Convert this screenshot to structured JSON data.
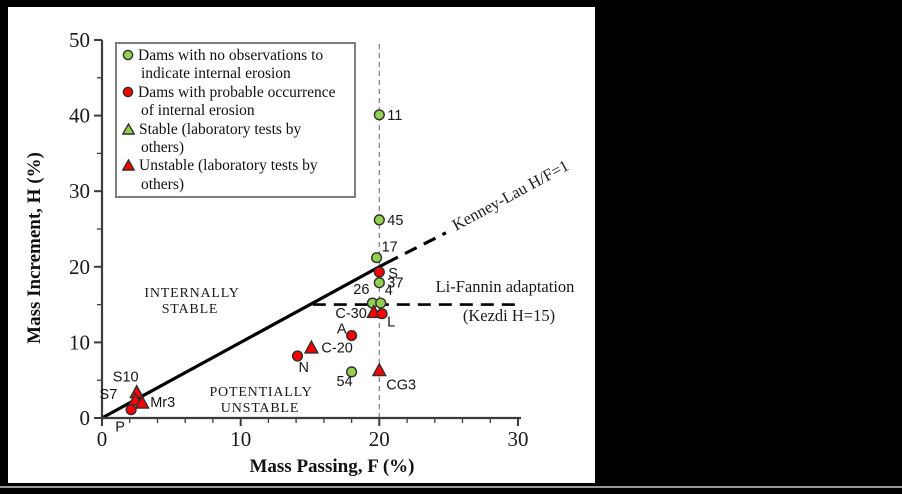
{
  "window": {
    "background_color": "#000000",
    "panel_color": "#ffffff",
    "divider_color": "#999999"
  },
  "legend": {
    "items": [
      {
        "marker": "circle",
        "color": "#92d050",
        "edge_color": "#2f2f2f",
        "lines": [
          "Dams with no observations to",
          "indicate internal erosion"
        ]
      },
      {
        "marker": "circle",
        "color": "#ff0000",
        "edge_color": "#2f2f2f",
        "lines": [
          "Dams with probable occurrence",
          "of internal erosion"
        ]
      },
      {
        "marker": "triangle",
        "color": "#92d050",
        "edge_color": "#2f2f2f",
        "lines": [
          "Stable (laboratory tests by",
          "others)"
        ]
      },
      {
        "marker": "triangle",
        "color": "#ff0000",
        "edge_color": "#2f2f2f",
        "lines": [
          "Unstable (laboratory tests by",
          "others)"
        ]
      }
    ]
  },
  "chart_data": {
    "type": "scatter",
    "xlabel": "Mass Passing, F (%)",
    "ylabel": "Mass Increment, H (%)",
    "xlim": [
      0,
      30
    ],
    "ylim": [
      0,
      50
    ],
    "x_major_ticks": [
      0,
      10,
      20,
      30
    ],
    "x_minor_step": 2,
    "y_major_ticks": [
      0,
      10,
      20,
      30,
      40,
      50
    ],
    "y_minor_step": 5,
    "grid": false,
    "legend_position": "upper-left",
    "series": [
      {
        "name": "Dams with no observations to indicate internal erosion",
        "marker": "circle",
        "color": "#92d050",
        "edge_color": "#2f2f2f",
        "points": [
          {
            "label": "11",
            "x": 20,
            "y": 40.1,
            "label_offset": [
              8,
              5
            ],
            "label_anchor": "start"
          },
          {
            "label": "45",
            "x": 20,
            "y": 26.2,
            "label_offset": [
              8,
              5
            ],
            "label_anchor": "start"
          },
          {
            "label": "17",
            "x": 19.8,
            "y": 21.2,
            "label_offset": [
              5,
              -6
            ],
            "label_anchor": "start"
          },
          {
            "label": "37",
            "x": 20,
            "y": 17.9,
            "label_offset": [
              8,
              5
            ],
            "label_anchor": "start"
          },
          {
            "label": "26",
            "x": 19.5,
            "y": 15.2,
            "label_offset": [
              -3,
              -9
            ],
            "label_anchor": "end"
          },
          {
            "label": "4",
            "x": 20.1,
            "y": 15.2,
            "label_offset": [
              4,
              -8
            ],
            "label_anchor": "start"
          },
          {
            "label": "54",
            "x": 18,
            "y": 6.1,
            "label_offset": [
              -7,
              14
            ],
            "label_anchor": "middle"
          }
        ]
      },
      {
        "name": "Dams with probable occurrence of internal erosion",
        "marker": "circle",
        "color": "#ff0000",
        "edge_color": "#2f2f2f",
        "points": [
          {
            "label": "S",
            "x": 20,
            "y": 19.3,
            "label_offset": [
              9,
              6
            ],
            "label_anchor": "start"
          },
          {
            "label": "L",
            "x": 20.2,
            "y": 13.8,
            "label_offset": [
              5,
              13
            ],
            "label_anchor": "start"
          },
          {
            "label": "A",
            "x": 18,
            "y": 10.9,
            "label_offset": [
              -5,
              -2
            ],
            "label_anchor": "end"
          },
          {
            "label": "N",
            "x": 14.1,
            "y": 8.2,
            "label_offset": [
              1,
              16
            ],
            "label_anchor": "start"
          },
          {
            "label": "P",
            "x": 2.1,
            "y": 1.1,
            "label_offset": [
              -11,
              22
            ],
            "label_anchor": "middle"
          }
        ]
      },
      {
        "name": "Stable (laboratory tests by others)",
        "marker": "triangle",
        "color": "#92d050",
        "edge_color": "#2f2f2f",
        "points": []
      },
      {
        "name": "Unstable (laboratory tests by others)",
        "marker": "triangle",
        "color": "#ff0000",
        "edge_color": "#2f2f2f",
        "points": [
          {
            "label": "C-30",
            "x": 19.6,
            "y": 14,
            "label_offset": [
              -7,
              6
            ],
            "label_anchor": "end"
          },
          {
            "label": "C-20",
            "x": 15.1,
            "y": 9.3,
            "label_offset": [
              10,
              5
            ],
            "label_anchor": "start"
          },
          {
            "label": "CG3",
            "x": 20,
            "y": 6.3,
            "label_offset": [
              7,
              19
            ],
            "label_anchor": "start"
          },
          {
            "label": "S10",
            "x": 2.5,
            "y": 3.4,
            "label_offset": [
              -11,
              -11
            ],
            "label_anchor": "middle"
          },
          {
            "label": "S7",
            "x": 2.4,
            "y": 2.4,
            "label_offset": [
              -18,
              -1
            ],
            "label_anchor": "end"
          },
          {
            "label": "Mr3",
            "x": 2.9,
            "y": 2.0,
            "label_offset": [
              8,
              4
            ],
            "label_anchor": "start"
          }
        ]
      }
    ],
    "lines": [
      {
        "name": "kenney-lau-solid",
        "style": "solid",
        "color": "#000000",
        "width": 3.2,
        "from": [
          0,
          0
        ],
        "to": [
          20.5,
          20.5
        ]
      },
      {
        "name": "kenney-lau-dashed",
        "style": "dashed",
        "color": "#000000",
        "width": 3.2,
        "dash": "13 8",
        "from": [
          20.5,
          20.5
        ],
        "to": [
          24.8,
          24.5
        ]
      },
      {
        "name": "li-fannin-kezdi",
        "style": "dashed",
        "color": "#000000",
        "width": 2.6,
        "dash": "13 8",
        "from": [
          15.2,
          15
        ],
        "to": [
          30.1,
          15
        ]
      },
      {
        "name": "f20-reference",
        "style": "dashed",
        "color": "#808080",
        "width": 1.2,
        "dash": "5 4",
        "from": [
          20,
          0
        ],
        "to": [
          20,
          49.7
        ]
      }
    ],
    "annotations": {
      "internally_stable": [
        "INTERNALLY",
        "STABLE"
      ],
      "potentially_unstable": [
        "POTENTIALLY",
        "UNSTABLE"
      ],
      "kenney_lau_label": "Kenney-Lau H/F=1",
      "li_fannin_label_1": "Li-Fannin adaptation",
      "li_fannin_label_2": "(Kezdi H=15)"
    }
  }
}
